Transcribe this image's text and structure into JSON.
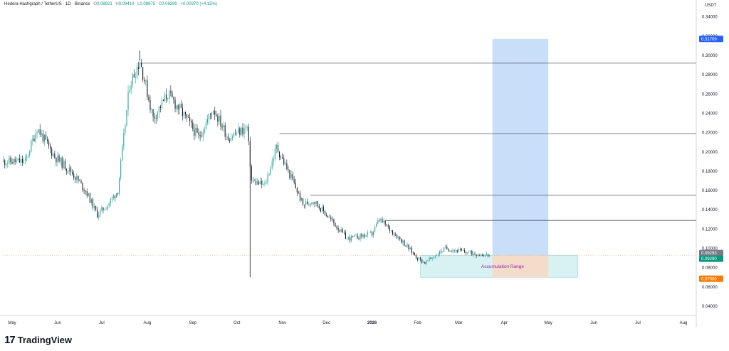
{
  "header": {
    "symbol": "Hedera Hashgraph / TetherUS · 1D · Binance",
    "o_label": "O",
    "o_value": "0.08921",
    "h_label": "H",
    "h_value": "0.09410",
    "l_label": "L",
    "l_value": "0.08875",
    "c_label": "C",
    "c_value": "0.09290",
    "change": "+0.00370 (+4.15%)"
  },
  "price_axis": {
    "unit": "USDT",
    "labels": [
      "0.34000",
      "0.32000",
      "0.30000",
      "0.28000",
      "0.26000",
      "0.24000",
      "0.22000",
      "0.20000",
      "0.18000",
      "0.16000",
      "0.14000",
      "0.12000",
      "0.10000",
      "0.08000",
      "0.06000",
      "0.04000"
    ]
  },
  "time_axis": {
    "labels": [
      "May",
      "Jun",
      "Jul",
      "Aug",
      "Sep",
      "Oct",
      "Nov",
      "Dec",
      "2026",
      "Feb",
      "Mar",
      "Apr",
      "May",
      "Jun",
      "Jul",
      "Aug"
    ]
  },
  "badges": [
    {
      "text": "0.31709",
      "color": "#2962ff"
    },
    {
      "text": "0.09293",
      "color": "#787b86"
    },
    {
      "text": "0.09290",
      "color": "#089981"
    },
    {
      "text": "0.07000",
      "color": "#f57c00"
    }
  ],
  "zones": {
    "accumulation_label": "Accumulation Range",
    "target_color": "#bbd6f7",
    "accumulation_color": "#d8f1f3",
    "stop_color": "#f8d8c2"
  },
  "footer": {
    "logo": "17",
    "brand": "TradingView"
  },
  "chart_data": {
    "type": "candlestick",
    "series_color_up": "#26a69a",
    "series_color_down": "#131722",
    "ylim": [
      0.03,
      0.35
    ],
    "unit": "USDT",
    "close_path": [
      {
        "date": "2025-04-25",
        "close": 0.19
      },
      {
        "date": "2025-05-10",
        "close": 0.19
      },
      {
        "date": "2025-05-18",
        "close": 0.225
      },
      {
        "date": "2025-05-30",
        "close": 0.195
      },
      {
        "date": "2025-06-10",
        "close": 0.18
      },
      {
        "date": "2025-06-20",
        "close": 0.16
      },
      {
        "date": "2025-06-28",
        "close": 0.135
      },
      {
        "date": "2025-07-05",
        "close": 0.145
      },
      {
        "date": "2025-07-12",
        "close": 0.16
      },
      {
        "date": "2025-07-20",
        "close": 0.27
      },
      {
        "date": "2025-07-27",
        "close": 0.295
      },
      {
        "date": "2025-08-05",
        "close": 0.235
      },
      {
        "date": "2025-08-15",
        "close": 0.26
      },
      {
        "date": "2025-08-25",
        "close": 0.24
      },
      {
        "date": "2025-09-05",
        "close": 0.215
      },
      {
        "date": "2025-09-15",
        "close": 0.245
      },
      {
        "date": "2025-09-25",
        "close": 0.215
      },
      {
        "date": "2025-10-08",
        "close": 0.225
      },
      {
        "date": "2025-10-11",
        "close": 0.17
      },
      {
        "date": "2025-10-20",
        "close": 0.165
      },
      {
        "date": "2025-10-28",
        "close": 0.205
      },
      {
        "date": "2025-11-08",
        "close": 0.17
      },
      {
        "date": "2025-11-15",
        "close": 0.145
      },
      {
        "date": "2025-11-22",
        "close": 0.15
      },
      {
        "date": "2025-12-01",
        "close": 0.135
      },
      {
        "date": "2025-12-15",
        "close": 0.11
      },
      {
        "date": "2026-01-01",
        "close": 0.115
      },
      {
        "date": "2026-01-06",
        "close": 0.13
      },
      {
        "date": "2026-01-20",
        "close": 0.11
      },
      {
        "date": "2026-02-01",
        "close": 0.09
      },
      {
        "date": "2026-02-06",
        "close": 0.085
      },
      {
        "date": "2026-02-20",
        "close": 0.1
      },
      {
        "date": "2026-03-10",
        "close": 0.095
      },
      {
        "date": "2026-03-22",
        "close": 0.0929
      }
    ],
    "notable_wicks": [
      {
        "date": "2025-10-10",
        "low": 0.07
      },
      {
        "date": "2025-07-27",
        "high": 0.305
      }
    ],
    "horizontal_levels": [
      {
        "price": 0.292,
        "from": "2025-07-27"
      },
      {
        "price": 0.219,
        "from": "2025-10-30"
      },
      {
        "price": 0.155,
        "from": "2025-11-20"
      },
      {
        "price": 0.129,
        "from": "2026-01-10"
      }
    ],
    "projection": {
      "entry": 0.0929,
      "target": 0.31709,
      "stop": 0.07,
      "start": "2026-03-24",
      "end": "2026-05-01",
      "accumulation_range": [
        0.07,
        0.0929
      ],
      "accumulation_start": "2026-02-03",
      "accumulation_end": "2026-05-21"
    }
  }
}
